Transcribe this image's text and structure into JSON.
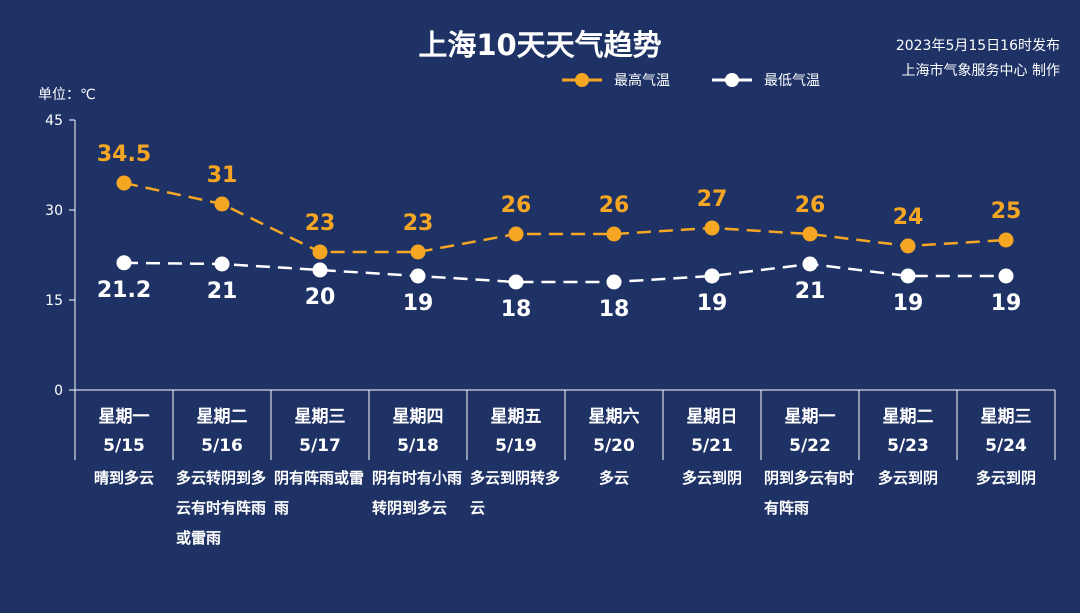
{
  "header": {
    "title": "上海10天天气趋势",
    "publish_time": "2023年5月15日16时发布",
    "publisher": "上海市气象服务中心 制作",
    "unit_label": "单位：℃"
  },
  "colors": {
    "background": "#1f3265",
    "high_series": "#f5a623",
    "low_series": "#ffffff",
    "axis": "#ffffff"
  },
  "chart_data": {
    "type": "line",
    "title": "上海10天天气趋势",
    "ylabel": "单位：℃",
    "ylim": [
      0,
      45
    ],
    "yticks": [
      0,
      15,
      30,
      45
    ],
    "grid": false,
    "legend": "top-center",
    "categories": [
      {
        "weekday": "星期一",
        "date": "5/15",
        "weather": "晴到多云"
      },
      {
        "weekday": "星期二",
        "date": "5/16",
        "weather": "多云转阴到多云有时有阵雨或雷雨"
      },
      {
        "weekday": "星期三",
        "date": "5/17",
        "weather": "阴有阵雨或雷雨"
      },
      {
        "weekday": "星期四",
        "date": "5/18",
        "weather": "阴有时有小雨转阴到多云"
      },
      {
        "weekday": "星期五",
        "date": "5/19",
        "weather": "多云到阴转多云"
      },
      {
        "weekday": "星期六",
        "date": "5/20",
        "weather": "多云"
      },
      {
        "weekday": "星期日",
        "date": "5/21",
        "weather": "多云到阴"
      },
      {
        "weekday": "星期一",
        "date": "5/22",
        "weather": "阴到多云有时有阵雨"
      },
      {
        "weekday": "星期二",
        "date": "5/23",
        "weather": "多云到阴"
      },
      {
        "weekday": "星期三",
        "date": "5/24",
        "weather": "多云到阴"
      }
    ],
    "series": [
      {
        "name": "最高气温",
        "values": [
          34.5,
          31,
          23,
          23,
          26,
          26,
          27,
          26,
          24,
          25
        ],
        "labels": [
          "34.5",
          "31",
          "23",
          "23",
          "26",
          "26",
          "27",
          "26",
          "24",
          "25"
        ]
      },
      {
        "name": "最低气温",
        "values": [
          21.2,
          21,
          20,
          19,
          18,
          18,
          19,
          21,
          19,
          19
        ],
        "labels": [
          "21.2",
          "21",
          "20",
          "19",
          "18",
          "18",
          "19",
          "21",
          "19",
          "19"
        ]
      }
    ]
  }
}
